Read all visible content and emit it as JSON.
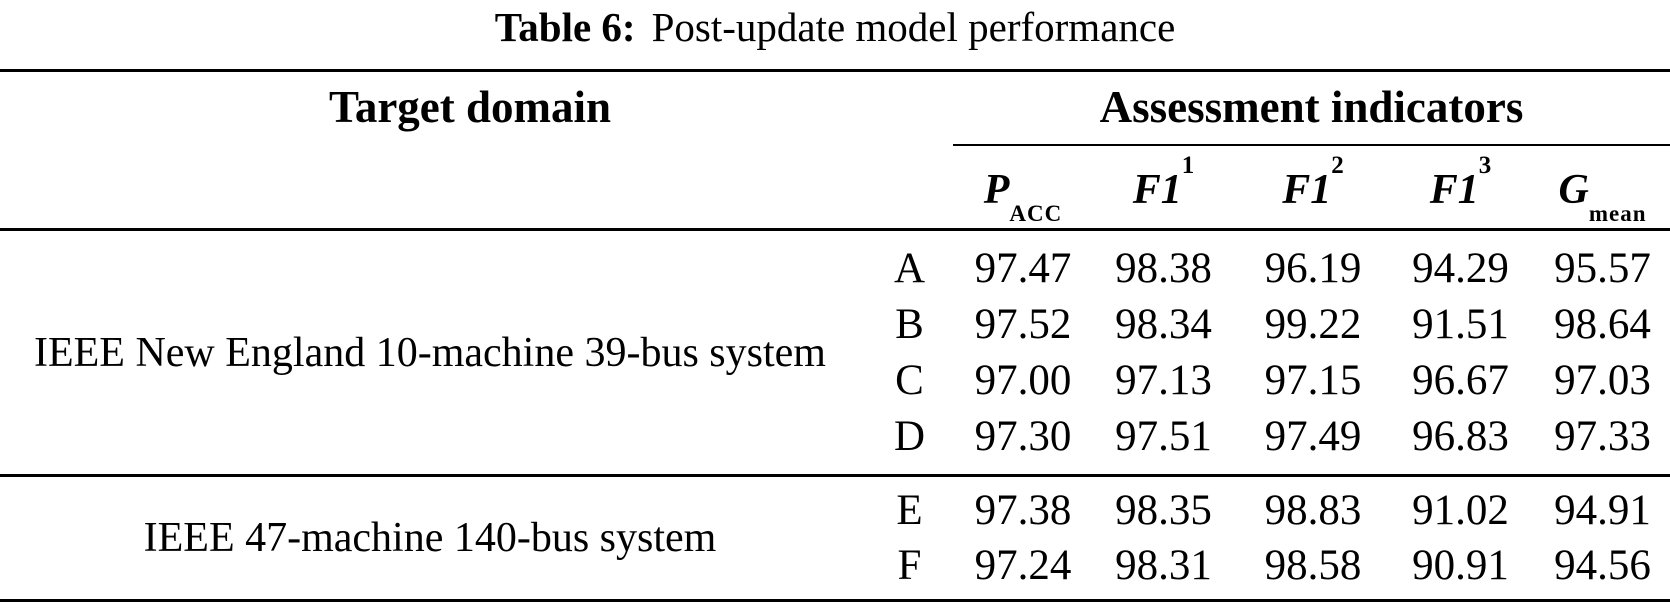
{
  "caption": {
    "label": "Table 6:",
    "text": "Post-update model performance"
  },
  "header": {
    "target_domain": "Target domain",
    "assessment_indicators": "Assessment indicators"
  },
  "columns": [
    {
      "name": "P_ACC",
      "main": "P",
      "sub": "ACC"
    },
    {
      "name": "F1_1",
      "main": "F1",
      "sup": "1"
    },
    {
      "name": "F1_2",
      "main": "F1",
      "sup": "2"
    },
    {
      "name": "F1_3",
      "main": "F1",
      "sup": "3"
    },
    {
      "name": "G_mean",
      "main": "G",
      "sub": "mean"
    }
  ],
  "sections": [
    {
      "target": "IEEE New England 10-machine 39-bus system",
      "rows": [
        {
          "model": "A",
          "values": [
            "97.47",
            "98.38",
            "96.19",
            "94.29",
            "95.57"
          ]
        },
        {
          "model": "B",
          "values": [
            "97.52",
            "98.34",
            "99.22",
            "91.51",
            "98.64"
          ]
        },
        {
          "model": "C",
          "values": [
            "97.00",
            "97.13",
            "97.15",
            "96.67",
            "97.03"
          ]
        },
        {
          "model": "D",
          "values": [
            "97.30",
            "97.51",
            "97.49",
            "96.83",
            "97.33"
          ]
        }
      ]
    },
    {
      "target": "IEEE 47-machine 140-bus system",
      "rows": [
        {
          "model": "E",
          "values": [
            "97.38",
            "98.35",
            "98.83",
            "91.02",
            "94.91"
          ]
        },
        {
          "model": "F",
          "values": [
            "97.24",
            "98.31",
            "98.58",
            "90.91",
            "94.56"
          ]
        }
      ]
    }
  ],
  "colors": {
    "text": "#000000",
    "background": "#ffffff",
    "rule": "#000000"
  }
}
